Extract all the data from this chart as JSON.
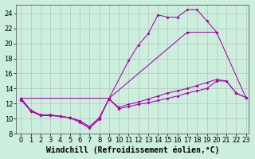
{
  "background_color": "#cceedd",
  "line_color": "#aa00aa",
  "grid_color": "#999999",
  "xlabel": "Windchill (Refroidissement éolien,°C)",
  "xlabel_fontsize": 7,
  "tick_fontsize": 6,
  "xlim": [
    -0.5,
    23.3
  ],
  "ylim": [
    8,
    25.2
  ],
  "yticks": [
    8,
    10,
    12,
    14,
    16,
    18,
    20,
    22,
    24
  ],
  "xticks": [
    0,
    1,
    2,
    3,
    4,
    5,
    6,
    7,
    8,
    9,
    10,
    11,
    12,
    13,
    14,
    15,
    16,
    17,
    18,
    19,
    20,
    21,
    22,
    23
  ],
  "curve1_x": [
    0,
    1,
    2,
    3,
    4,
    5,
    6,
    7,
    8,
    9,
    11,
    12,
    13,
    14,
    15,
    16,
    17,
    18,
    19,
    20
  ],
  "curve1_y": [
    12.7,
    11.1,
    10.5,
    10.5,
    10.3,
    10.1,
    9.5,
    8.7,
    9.9,
    12.7,
    17.7,
    19.8,
    21.3,
    23.8,
    23.5,
    23.5,
    24.5,
    24.5,
    23.0,
    21.5
  ],
  "curve2_x": [
    0,
    9,
    17,
    20,
    23
  ],
  "curve2_y": [
    12.7,
    12.7,
    21.5,
    21.5,
    12.8
  ],
  "curve3_x": [
    0,
    1,
    2,
    3,
    4,
    5,
    6,
    7,
    8,
    9,
    10,
    11,
    12,
    13,
    14,
    15,
    16,
    17,
    18,
    19,
    20,
    21,
    22,
    23
  ],
  "curve3_y": [
    12.5,
    11.0,
    10.4,
    10.4,
    10.3,
    10.1,
    9.7,
    8.9,
    10.1,
    12.6,
    11.3,
    11.6,
    11.9,
    12.1,
    12.4,
    12.7,
    13.0,
    13.4,
    13.7,
    14.0,
    15.0,
    15.0,
    13.4,
    12.8
  ],
  "curve4_x": [
    0,
    1,
    2,
    3,
    4,
    5,
    6,
    7,
    8,
    9,
    10,
    11,
    12,
    13,
    14,
    15,
    16,
    17,
    18,
    19,
    20,
    21,
    22,
    23
  ],
  "curve4_y": [
    12.5,
    11.0,
    10.4,
    10.4,
    10.3,
    10.1,
    9.7,
    8.9,
    10.1,
    12.6,
    11.5,
    11.9,
    12.2,
    12.6,
    13.0,
    13.4,
    13.7,
    14.0,
    14.4,
    14.8,
    15.2,
    15.0,
    13.4,
    12.8
  ]
}
